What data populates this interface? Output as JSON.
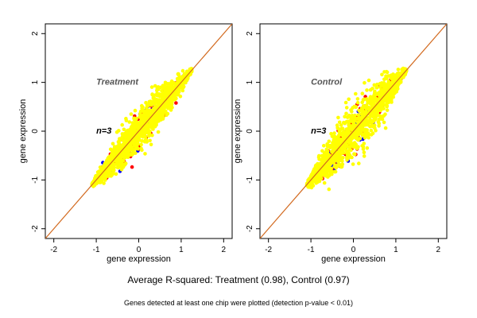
{
  "chart_data": [
    {
      "type": "scatter",
      "annotation": "Treatment",
      "n_label": "n=3",
      "xlabel": "gene expression",
      "ylabel": "gene expression",
      "xlim": [
        -2.2,
        2.2
      ],
      "ylim": [
        -2.2,
        2.2
      ],
      "xticks": [
        "-2",
        "-1",
        "0",
        "1",
        "2"
      ],
      "yticks": [
        "-2",
        "-1",
        "0",
        "1",
        "2"
      ],
      "xtick_values": [
        -2,
        -1,
        0,
        1,
        2
      ],
      "ytick_values": [
        -2,
        -1,
        0,
        1,
        2
      ],
      "diagonal": {
        "from": [
          -2.2,
          -2.2
        ],
        "to": [
          2.2,
          2.2
        ],
        "color": "#d2691e"
      },
      "series_colors": {
        "main": "#ffff00",
        "outlier_1": "#ff0000",
        "outlier_2": "#0000ff"
      },
      "point_cloud": {
        "x_range": [
          -1.1,
          1.25
        ],
        "spread": 0.12,
        "outlier_spread": 0.3
      }
    },
    {
      "type": "scatter",
      "annotation": "Control",
      "n_label": "n=3",
      "xlabel": "gene expression",
      "ylabel": "gene expression",
      "xlim": [
        -2.2,
        2.2
      ],
      "ylim": [
        -2.2,
        2.2
      ],
      "xticks": [
        "-2",
        "-1",
        "0",
        "1",
        "2"
      ],
      "yticks": [
        "-2",
        "-1",
        "0",
        "1",
        "2"
      ],
      "xtick_values": [
        -2,
        -1,
        0,
        1,
        2
      ],
      "ytick_values": [
        -2,
        -1,
        0,
        1,
        2
      ],
      "diagonal": {
        "from": [
          -2.2,
          -2.2
        ],
        "to": [
          2.2,
          2.2
        ],
        "color": "#d2691e"
      },
      "series_colors": {
        "main": "#ffff00",
        "outlier_1": "#ff0000",
        "outlier_2": "#0000ff"
      },
      "point_cloud": {
        "x_range": [
          -1.1,
          1.25
        ],
        "spread": 0.16,
        "outlier_spread": 0.32
      }
    }
  ],
  "footer": {
    "summary": "Average R-squared: Treatment (0.98), Control (0.97)",
    "note": "Genes detected at least one chip were plotted (detection p-value < 0.01)"
  }
}
